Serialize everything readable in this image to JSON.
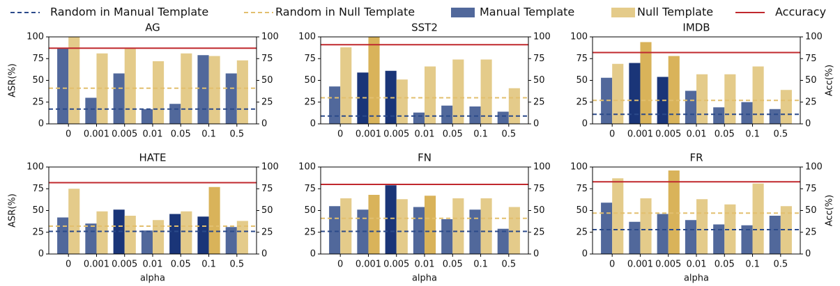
{
  "legend": [
    {
      "label": "Random in Manual Template",
      "color": "#2b4a8a",
      "mark": "dashed"
    },
    {
      "label": "Random in Null Template",
      "color": "#e2bf6e",
      "mark": "dashed"
    },
    {
      "label": "Manual Template",
      "color": "#51689b",
      "mark": "patch"
    },
    {
      "label": "Null Template",
      "color": "#e4cb8a",
      "mark": "patch"
    },
    {
      "label": "Accuracy",
      "color": "#c0282d",
      "mark": "solid"
    }
  ],
  "chart_data": [
    {
      "type": "bar",
      "title": "AG",
      "ylabel": "ASR(%)",
      "categories": [
        "0",
        "0.001",
        "0.005",
        "0.01",
        "0.05",
        "0.1",
        "0.5"
      ],
      "series": [
        {
          "values": [
            87,
            30,
            58,
            17,
            23,
            79,
            58
          ],
          "colors": [
            "#51689b",
            "#51689b",
            "#51689b",
            "#51689b",
            "#51689b",
            "#51689b",
            "#51689b"
          ]
        },
        {
          "values": [
            100,
            81,
            87,
            72,
            81,
            78,
            73
          ],
          "colors": [
            "#e4cb8a",
            "#e4cb8a",
            "#e4cb8a",
            "#e4cb8a",
            "#e4cb8a",
            "#e4cb8a",
            "#e4cb8a"
          ]
        }
      ],
      "random_manual": 17,
      "random_null": 41,
      "accuracy": 87,
      "ylim": [
        0,
        100
      ],
      "yticks": [
        0,
        25,
        50,
        75,
        100
      ],
      "y2lim": [
        0,
        100
      ],
      "y2ticks": [
        0,
        25,
        50,
        75,
        100
      ]
    },
    {
      "type": "bar",
      "title": "SST2",
      "categories": [
        "0",
        "0.001",
        "0.005",
        "0.01",
        "0.05",
        "0.1",
        "0.5"
      ],
      "series": [
        {
          "values": [
            43,
            59,
            61,
            13,
            21,
            20,
            14
          ],
          "colors": [
            "#51689b",
            "#1a3578",
            "#1a3578",
            "#51689b",
            "#51689b",
            "#51689b",
            "#51689b"
          ]
        },
        {
          "values": [
            88,
            100,
            51,
            66,
            74,
            74,
            41
          ],
          "colors": [
            "#e4cb8a",
            "#d9b35a",
            "#e4cb8a",
            "#e4cb8a",
            "#e4cb8a",
            "#e4cb8a",
            "#e4cb8a"
          ]
        }
      ],
      "random_manual": 9,
      "random_null": 30,
      "accuracy": 91,
      "ylim": [
        0,
        100
      ],
      "yticks": [
        0,
        25,
        50,
        75,
        100
      ],
      "y2lim": [
        0,
        100
      ],
      "y2ticks": [
        0,
        25,
        50,
        75,
        100
      ]
    },
    {
      "type": "bar",
      "title": "IMDB",
      "y2label": "Acc(%)",
      "categories": [
        "0",
        "0.001",
        "0.005",
        "0.01",
        "0.05",
        "0.1",
        "0.5"
      ],
      "series": [
        {
          "values": [
            53,
            70,
            54,
            38,
            19,
            25,
            17
          ],
          "colors": [
            "#51689b",
            "#1a3578",
            "#1a3578",
            "#51689b",
            "#51689b",
            "#51689b",
            "#51689b"
          ]
        },
        {
          "values": [
            69,
            94,
            78,
            57,
            57,
            66,
            39
          ],
          "colors": [
            "#e4cb8a",
            "#d9b35a",
            "#d9b35a",
            "#e4cb8a",
            "#e4cb8a",
            "#e4cb8a",
            "#e4cb8a"
          ]
        }
      ],
      "random_manual": 11,
      "random_null": 27,
      "accuracy": 82,
      "ylim": [
        0,
        100
      ],
      "yticks": [
        0,
        25,
        50,
        75,
        100
      ],
      "y2lim": [
        0,
        100
      ],
      "y2ticks": [
        0,
        25,
        50,
        75,
        100
      ]
    },
    {
      "type": "bar",
      "title": "HATE",
      "ylabel": "ASR(%)",
      "xlabel": "alpha",
      "categories": [
        "0",
        "0.001",
        "0.005",
        "0.01",
        "0.05",
        "0.1",
        "0.5"
      ],
      "series": [
        {
          "values": [
            42,
            35,
            51,
            27,
            46,
            43,
            31
          ],
          "colors": [
            "#51689b",
            "#51689b",
            "#1a3578",
            "#51689b",
            "#1a3578",
            "#1a3578",
            "#51689b"
          ]
        },
        {
          "values": [
            75,
            49,
            44,
            39,
            49,
            77,
            38
          ],
          "colors": [
            "#e4cb8a",
            "#e4cb8a",
            "#e4cb8a",
            "#e4cb8a",
            "#e4cb8a",
            "#d9b35a",
            "#e4cb8a"
          ]
        }
      ],
      "random_manual": 26,
      "random_null": 32,
      "accuracy": 82,
      "ylim": [
        0,
        100
      ],
      "yticks": [
        0,
        25,
        50,
        75,
        100
      ],
      "y2lim": [
        0,
        100
      ],
      "y2ticks": [
        0,
        25,
        50,
        75,
        100
      ]
    },
    {
      "type": "bar",
      "title": "FN",
      "xlabel": "alpha",
      "categories": [
        "0",
        "0.001",
        "0.005",
        "0.01",
        "0.05",
        "0.1",
        "0.5"
      ],
      "series": [
        {
          "values": [
            55,
            51,
            79,
            54,
            40,
            51,
            29
          ],
          "colors": [
            "#51689b",
            "#51689b",
            "#1a3578",
            "#51689b",
            "#51689b",
            "#51689b",
            "#51689b"
          ]
        },
        {
          "values": [
            64,
            68,
            63,
            67,
            64,
            64,
            54
          ],
          "colors": [
            "#e4cb8a",
            "#d9b35a",
            "#e4cb8a",
            "#d9b35a",
            "#e4cb8a",
            "#e4cb8a",
            "#e4cb8a"
          ]
        }
      ],
      "random_manual": 26,
      "random_null": 41,
      "accuracy": 80,
      "ylim": [
        0,
        100
      ],
      "yticks": [
        0,
        25,
        50,
        75,
        100
      ],
      "y2lim": [
        0,
        100
      ],
      "y2ticks": [
        0,
        25,
        50,
        75,
        100
      ]
    },
    {
      "type": "bar",
      "title": "FR",
      "y2label": "Acc(%)",
      "xlabel": "alpha",
      "categories": [
        "0",
        "0.001",
        "0.005",
        "0.01",
        "0.05",
        "0.1",
        "0.5"
      ],
      "series": [
        {
          "values": [
            59,
            37,
            46,
            39,
            34,
            33,
            44
          ],
          "colors": [
            "#51689b",
            "#51689b",
            "#51689b",
            "#51689b",
            "#51689b",
            "#51689b",
            "#51689b"
          ]
        },
        {
          "values": [
            87,
            64,
            96,
            63,
            57,
            81,
            55
          ],
          "colors": [
            "#e4cb8a",
            "#e4cb8a",
            "#d9b35a",
            "#e4cb8a",
            "#e4cb8a",
            "#e4cb8a",
            "#e4cb8a"
          ]
        }
      ],
      "random_manual": 28,
      "random_null": 47,
      "accuracy": 83,
      "ylim": [
        0,
        100
      ],
      "yticks": [
        0,
        25,
        50,
        75,
        100
      ],
      "y2lim": [
        0,
        100
      ],
      "y2ticks": [
        0,
        25,
        50,
        75,
        100
      ]
    }
  ]
}
